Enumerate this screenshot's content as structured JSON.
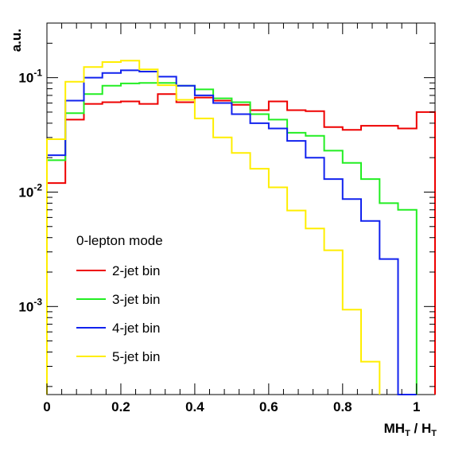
{
  "chart_data": {
    "type": "line",
    "title": "",
    "xlabel_main": "MH",
    "xlabel_main_sub": "T",
    "xlabel_sep": " / H",
    "xlabel_sep_sub": "T",
    "ylabel": "a.u.",
    "xlim": [
      0,
      1.05
    ],
    "ylim": [
      0.00017,
      0.3
    ],
    "yscale": "log",
    "xticks": [
      "0",
      "0.2",
      "0.4",
      "0.6",
      "0.8",
      "1"
    ],
    "yticks": [
      {
        "base": "10",
        "exp": "-1",
        "value": 0.1
      },
      {
        "base": "10",
        "exp": "-2",
        "value": 0.01
      },
      {
        "base": "10",
        "exp": "-3",
        "value": 0.001
      }
    ],
    "legend": {
      "header": "0-lepton mode",
      "placement": "lower-left",
      "entries": [
        "2-jet bin",
        "3-jet bin",
        "4-jet bin",
        "5-jet bin"
      ]
    },
    "bin_width": 0.05,
    "bin_edges_start": 0,
    "series": [
      {
        "name": "2-jet bin",
        "color": "#ee0000",
        "values": [
          0.012,
          0.043,
          0.059,
          0.061,
          0.062,
          0.059,
          0.072,
          0.061,
          0.067,
          0.063,
          0.058,
          0.052,
          0.062,
          0.052,
          0.051,
          0.037,
          0.035,
          0.038,
          0.038,
          0.036,
          0.05
        ]
      },
      {
        "name": "3-jet bin",
        "color": "#22ee22",
        "values": [
          0.019,
          0.049,
          0.072,
          0.085,
          0.089,
          0.09,
          0.09,
          0.085,
          0.079,
          0.066,
          0.061,
          0.048,
          0.043,
          0.033,
          0.031,
          0.023,
          0.018,
          0.013,
          0.008,
          0.007
        ]
      },
      {
        "name": "4-jet bin",
        "color": "#1122ee",
        "values": [
          0.021,
          0.063,
          0.1,
          0.11,
          0.116,
          0.113,
          0.102,
          0.085,
          0.07,
          0.06,
          0.048,
          0.04,
          0.036,
          0.028,
          0.02,
          0.013,
          0.0087,
          0.0056,
          0.0026,
          0.00017
        ]
      },
      {
        "name": "5-jet bin",
        "color": "#ffee00",
        "values": [
          0.029,
          0.092,
          0.124,
          0.137,
          0.141,
          0.118,
          0.086,
          0.064,
          0.044,
          0.03,
          0.022,
          0.016,
          0.011,
          0.0069,
          0.0048,
          0.0031,
          0.00094,
          0.00033
        ]
      }
    ],
    "grid": false
  }
}
